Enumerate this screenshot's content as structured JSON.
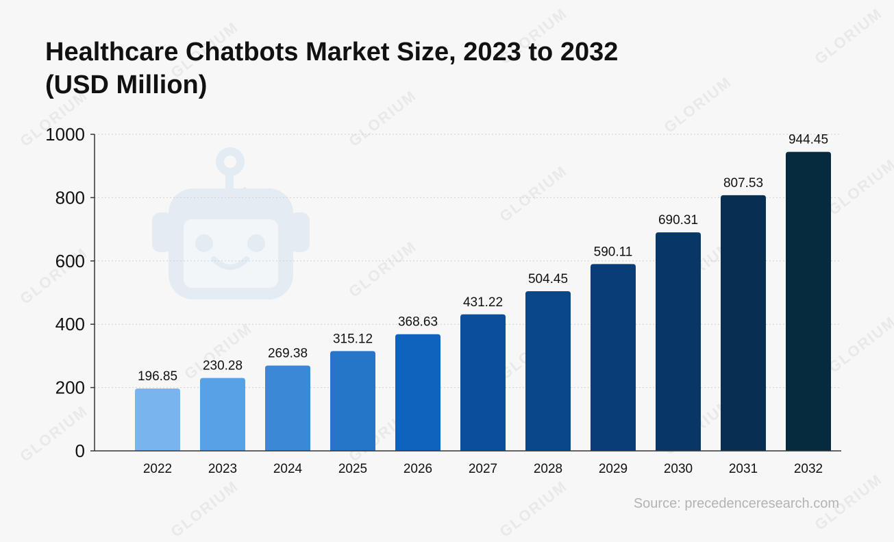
{
  "watermark": "GLORIUM",
  "chart_data": {
    "type": "bar",
    "title_line1": "Healthcare Chatbots Market Size, 2023 to 2032",
    "title_line2": "(USD Million)",
    "categories": [
      "2022",
      "2023",
      "2024",
      "2025",
      "2026",
      "2027",
      "2028",
      "2029",
      "2030",
      "2031",
      "2032"
    ],
    "values": [
      196.85,
      230.28,
      269.38,
      315.12,
      368.63,
      431.22,
      504.45,
      590.11,
      690.31,
      807.53,
      944.45
    ],
    "value_labels": [
      "196.85",
      "230.28",
      "269.38",
      "315.12",
      "368.63",
      "431.22",
      "504.45",
      "590.11",
      "690.31",
      "807.53",
      "944.45"
    ],
    "bar_colors": [
      "#79b4ef",
      "#58a1e6",
      "#3a88d6",
      "#2576c8",
      "#0f63bd",
      "#0a4f9a",
      "#0a468a",
      "#093d78",
      "#083766",
      "#072f52",
      "#062a3e"
    ],
    "y_ticks": [
      "0",
      "200",
      "400",
      "600",
      "800",
      "1000"
    ],
    "ylim": [
      0,
      1000
    ],
    "grid": true,
    "source": "Source: precedenceresearch.com"
  }
}
